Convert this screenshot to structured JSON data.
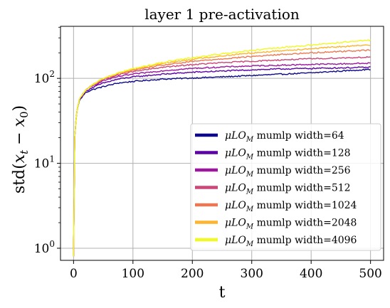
{
  "chart_data": {
    "type": "line",
    "title": "layer 1 pre-activation",
    "xlabel": "t",
    "ylabel": "std(x_t − x_0)",
    "xlim": [
      -22,
      522
    ],
    "ylim": [
      0.72,
      410
    ],
    "yscale": "log",
    "grid": true,
    "legend_position": "lower-right",
    "x_ticks": [
      0,
      100,
      200,
      300,
      400,
      500
    ],
    "x_tick_labels": [
      "0",
      "100",
      "200",
      "300",
      "400",
      "500"
    ],
    "y_ticks": [
      1,
      10,
      100
    ],
    "y_tick_labels": [
      "10^0",
      "10^1",
      "10^2"
    ],
    "x": [
      0,
      2,
      5,
      10,
      20,
      30,
      50,
      75,
      100,
      150,
      200,
      250,
      300,
      350,
      400,
      450,
      500
    ],
    "series": [
      {
        "name": "μLO_M mumlp width=64",
        "color": "#0d0887",
        "values": [
          0.8,
          20,
          40,
          55,
          68,
          73,
          80,
          88,
          92,
          98,
          101,
          104,
          108,
          112,
          116,
          122,
          128
        ]
      },
      {
        "name": "μLO_M mumlp width=128",
        "color": "#5c01a6",
        "values": [
          0.8,
          20,
          40,
          56,
          70,
          77,
          88,
          98,
          104,
          112,
          118,
          122,
          126,
          129,
          131,
          133,
          135
        ]
      },
      {
        "name": "μLO_M mumlp width=256",
        "color": "#9c179e",
        "values": [
          0.8,
          20,
          40,
          57,
          71,
          80,
          94,
          105,
          112,
          123,
          131,
          136,
          140,
          143,
          146,
          148,
          151
        ]
      },
      {
        "name": "μLO_M mumlp width=512",
        "color": "#cc4778",
        "values": [
          0.8,
          20,
          40,
          57,
          72,
          81,
          97,
          110,
          120,
          135,
          145,
          153,
          159,
          165,
          170,
          174,
          178
        ]
      },
      {
        "name": "μLO_M mumlp width=1024",
        "color": "#ec7853",
        "values": [
          0.8,
          20,
          40,
          57,
          72,
          82,
          99,
          113,
          125,
          143,
          158,
          170,
          181,
          191,
          200,
          208,
          215
        ]
      },
      {
        "name": "μLO_M mumlp width=2048",
        "color": "#fdb42f",
        "values": [
          0.8,
          20,
          40,
          57,
          72,
          82,
          100,
          115,
          128,
          150,
          168,
          184,
          199,
          212,
          224,
          236,
          247
        ]
      },
      {
        "name": "μLO_M mumlp width=4096",
        "color": "#f0f921",
        "values": [
          0.8,
          20,
          40,
          57,
          72,
          82,
          100,
          116,
          130,
          154,
          175,
          195,
          213,
          230,
          247,
          265,
          282
        ]
      }
    ],
    "legend": {
      "prefix_mu": "μ",
      "prefix_lo": "LO",
      "prefix_sub": "M",
      "labels": [
        "mumlp width=64",
        "mumlp width=128",
        "mumlp width=256",
        "mumlp width=512",
        "mumlp width=1024",
        "mumlp width=2048",
        "mumlp width=4096"
      ]
    }
  }
}
